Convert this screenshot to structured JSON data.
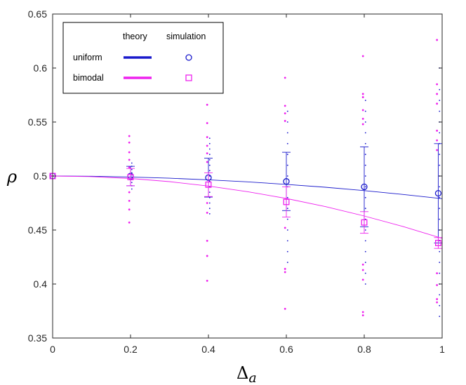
{
  "chart_data": {
    "type": "scatter",
    "title": "",
    "xlabel": "Δ",
    "xlabel_sub": "a",
    "ylabel": "ρ",
    "xlim": [
      0,
      1
    ],
    "ylim": [
      0.35,
      0.65
    ],
    "x_ticks": [
      0,
      0.2,
      0.4,
      0.6,
      0.8,
      1
    ],
    "x_tick_labels": [
      "0",
      "0.2",
      "0.4",
      "0.6",
      "0.8",
      "1"
    ],
    "y_ticks": [
      0.35,
      0.4,
      0.45,
      0.5,
      0.55,
      0.6,
      0.65
    ],
    "y_tick_labels": [
      "0.35",
      "0.4",
      "0.45",
      "0.5",
      "0.55",
      "0.6",
      "0.65"
    ],
    "grid": false,
    "legend": {
      "position": "top-left",
      "col_theory": "theory",
      "col_simulation": "simulation",
      "entries": [
        {
          "label": "uniform",
          "color": "#1a1acc",
          "marker": "circle"
        },
        {
          "label": "bimodal",
          "color": "#ee22ee",
          "marker": "square"
        }
      ]
    },
    "series": [
      {
        "name": "uniform",
        "color": "#1a1acc",
        "marker_color": "#1a1acc",
        "theory": {
          "x": [
            0,
            0.1,
            0.2,
            0.3,
            0.4,
            0.5,
            0.6,
            0.7,
            0.8,
            0.9,
            1
          ],
          "y": [
            0.5,
            0.4998,
            0.4991,
            0.498,
            0.4965,
            0.4946,
            0.4923,
            0.4896,
            0.4865,
            0.4829,
            0.479
          ]
        },
        "simulation": {
          "x": [
            0,
            0.2,
            0.4,
            0.6,
            0.8,
            0.99
          ],
          "mean": [
            0.5,
            0.5,
            0.4985,
            0.495,
            0.49,
            0.484
          ],
          "std": [
            0,
            0.009,
            0.018,
            0.027,
            0.037,
            0.046
          ],
          "dots": [
            [
              0.5
            ],
            [
              0.491,
              0.494,
              0.497,
              0.499,
              0.501,
              0.503,
              0.506,
              0.509,
              0.488,
              0.512
            ],
            [
              0.47,
              0.475,
              0.48,
              0.485,
              0.49,
              0.495,
              0.5,
              0.505,
              0.51,
              0.515,
              0.52,
              0.525,
              0.53,
              0.465,
              0.535
            ],
            [
              0.44,
              0.45,
              0.46,
              0.47,
              0.48,
              0.49,
              0.5,
              0.51,
              0.52,
              0.53,
              0.54,
              0.55,
              0.43,
              0.56,
              0.42
            ],
            [
              0.41,
              0.42,
              0.43,
              0.44,
              0.45,
              0.46,
              0.47,
              0.48,
              0.49,
              0.5,
              0.51,
              0.52,
              0.53,
              0.54,
              0.55,
              0.56,
              0.57,
              0.4
            ],
            [
              0.37,
              0.38,
              0.39,
              0.4,
              0.41,
              0.42,
              0.43,
              0.44,
              0.45,
              0.46,
              0.47,
              0.48,
              0.49,
              0.5,
              0.51,
              0.52,
              0.53,
              0.54,
              0.55,
              0.56,
              0.57,
              0.58,
              0.6
            ]
          ]
        }
      },
      {
        "name": "bimodal",
        "color": "#ee22ee",
        "marker_color": "#ee22ee",
        "theory": {
          "x": [
            0,
            0.1,
            0.2,
            0.3,
            0.4,
            0.5,
            0.6,
            0.7,
            0.8,
            0.9,
            1
          ],
          "y": [
            0.5,
            0.4994,
            0.4977,
            0.4948,
            0.4907,
            0.4855,
            0.4792,
            0.4717,
            0.463,
            0.4532,
            0.4423
          ]
        },
        "simulation": {
          "x": [
            0,
            0.2,
            0.4,
            0.6,
            0.8,
            0.99
          ],
          "mean": [
            0.5,
            0.499,
            0.492,
            0.476,
            0.457,
            0.438
          ],
          "std": [
            0,
            0.008,
            0.011,
            0.014,
            0.01,
            0.005
          ],
          "dots": [
            [
              0.5
            ],
            [
              0.537,
              0.531,
              0.522,
              0.515,
              0.508,
              0.485,
              0.477,
              0.469,
              0.457
            ],
            [
              0.566,
              0.549,
              0.536,
              0.528,
              0.521,
              0.513,
              0.475,
              0.466,
              0.44,
              0.426,
              0.403
            ],
            [
              0.591,
              0.565,
              0.558,
              0.551,
              0.452,
              0.414,
              0.411,
              0.377
            ],
            [
              0.611,
              0.576,
              0.573,
              0.561,
              0.553,
              0.548,
              0.418,
              0.413,
              0.404,
              0.374,
              0.371
            ],
            [
              0.626,
              0.585,
              0.576,
              0.567,
              0.542,
              0.533,
              0.524,
              0.41,
              0.399,
              0.386,
              0.383
            ]
          ]
        }
      }
    ]
  }
}
